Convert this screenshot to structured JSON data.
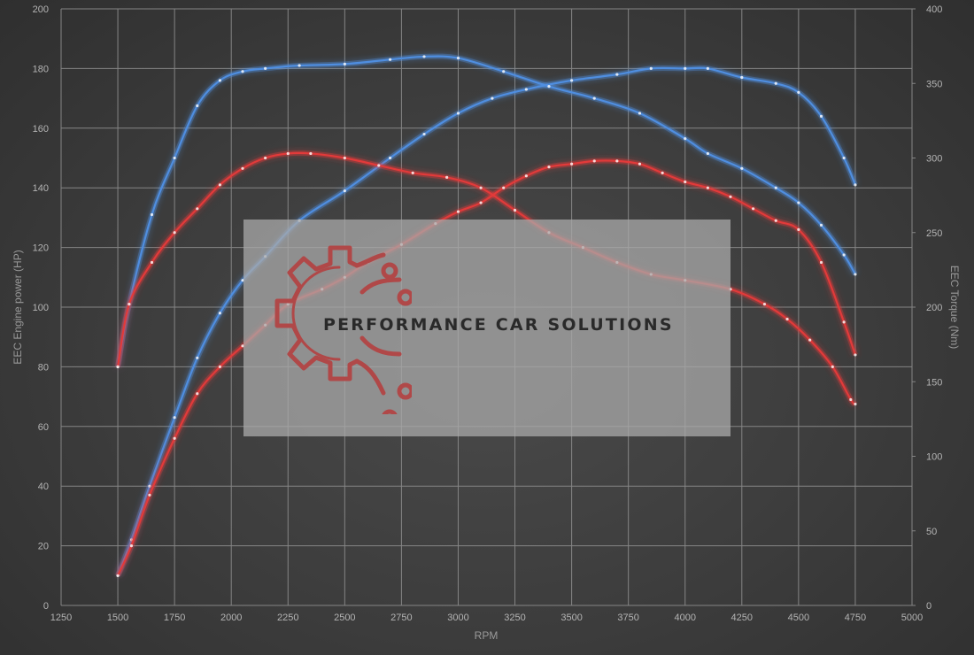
{
  "chart_data": {
    "type": "line",
    "title": "",
    "xlabel": "RPM",
    "ylabel_left": "EEC Engine power (HP)",
    "ylabel_right": "EEC Torque (Nm)",
    "xlim": [
      1250,
      5000
    ],
    "ylim_left": [
      0,
      200
    ],
    "ylim_right": [
      0,
      400
    ],
    "xticks": [
      "1250",
      "1500",
      "1750",
      "2000",
      "2250",
      "2500",
      "2750",
      "3000",
      "3250",
      "3500",
      "3750",
      "4000",
      "4250",
      "4500",
      "4750",
      "5000"
    ],
    "yticks_left": [
      "0",
      "20",
      "40",
      "60",
      "80",
      "100",
      "120",
      "140",
      "160",
      "180",
      "200"
    ],
    "yticks_right": [
      "0",
      "50",
      "100",
      "150",
      "200",
      "250",
      "300",
      "350",
      "400"
    ],
    "grid": true,
    "legend": "none",
    "series": [
      {
        "axis": "left",
        "color": "#4f8ee0",
        "x": [
          1500,
          1560,
          1640,
          1750,
          1850,
          1950,
          2050,
          2150,
          2300,
          2500,
          2700,
          2850,
          3000,
          3150,
          3300,
          3500,
          3700,
          3850,
          4000,
          4100,
          4250,
          4400,
          4500,
          4600,
          4700,
          4750
        ],
        "y": [
          10,
          22,
          40,
          63,
          83,
          98,
          109,
          117,
          129,
          139,
          150,
          158,
          165,
          170,
          173,
          176,
          178,
          180,
          180,
          180,
          177,
          175,
          172,
          164,
          150,
          141
        ]
      },
      {
        "axis": "left",
        "color": "#e23a3a",
        "x": [
          1500,
          1560,
          1640,
          1750,
          1850,
          1950,
          2050,
          2150,
          2250,
          2400,
          2500,
          2600,
          2750,
          2900,
          3000,
          3100,
          3200,
          3300,
          3400,
          3500,
          3600,
          3700,
          3800,
          3900,
          4000,
          4100,
          4200,
          4300,
          4400,
          4500,
          4600,
          4700,
          4750
        ],
        "y": [
          10,
          20,
          37,
          56,
          71,
          80,
          87,
          94,
          101,
          106,
          110,
          115,
          121,
          128,
          132,
          135,
          140,
          144,
          147,
          148,
          149,
          149,
          148,
          145,
          142,
          140,
          137,
          133,
          129,
          126,
          115,
          95,
          84
        ]
      },
      {
        "axis": "right",
        "color": "#4f8ee0",
        "x": [
          1500,
          1550,
          1650,
          1750,
          1850,
          1950,
          2050,
          2150,
          2300,
          2500,
          2700,
          2850,
          3000,
          3200,
          3400,
          3600,
          3800,
          4000,
          4100,
          4250,
          4400,
          4500,
          4600,
          4700,
          4750
        ],
        "y": [
          160,
          202,
          262,
          300,
          335,
          352,
          358,
          360,
          362,
          363,
          366,
          368,
          367,
          358,
          348,
          340,
          330,
          313,
          303,
          293,
          280,
          270,
          255,
          235,
          222
        ]
      },
      {
        "axis": "right",
        "color": "#e23a3a",
        "x": [
          1500,
          1550,
          1650,
          1750,
          1850,
          1950,
          2050,
          2150,
          2250,
          2350,
          2500,
          2650,
          2800,
          2950,
          3100,
          3250,
          3400,
          3550,
          3700,
          3850,
          4000,
          4200,
          4350,
          4450,
          4550,
          4650,
          4730,
          4750
        ],
        "y": [
          160,
          202,
          230,
          250,
          266,
          282,
          293,
          300,
          303,
          303,
          300,
          295,
          290,
          287,
          280,
          265,
          250,
          240,
          230,
          222,
          218,
          212,
          202,
          192,
          178,
          160,
          138,
          135
        ]
      }
    ]
  },
  "watermark": {
    "text": "PERFORMANCE CAR SOLUTIONS",
    "accent": "#b04848"
  }
}
